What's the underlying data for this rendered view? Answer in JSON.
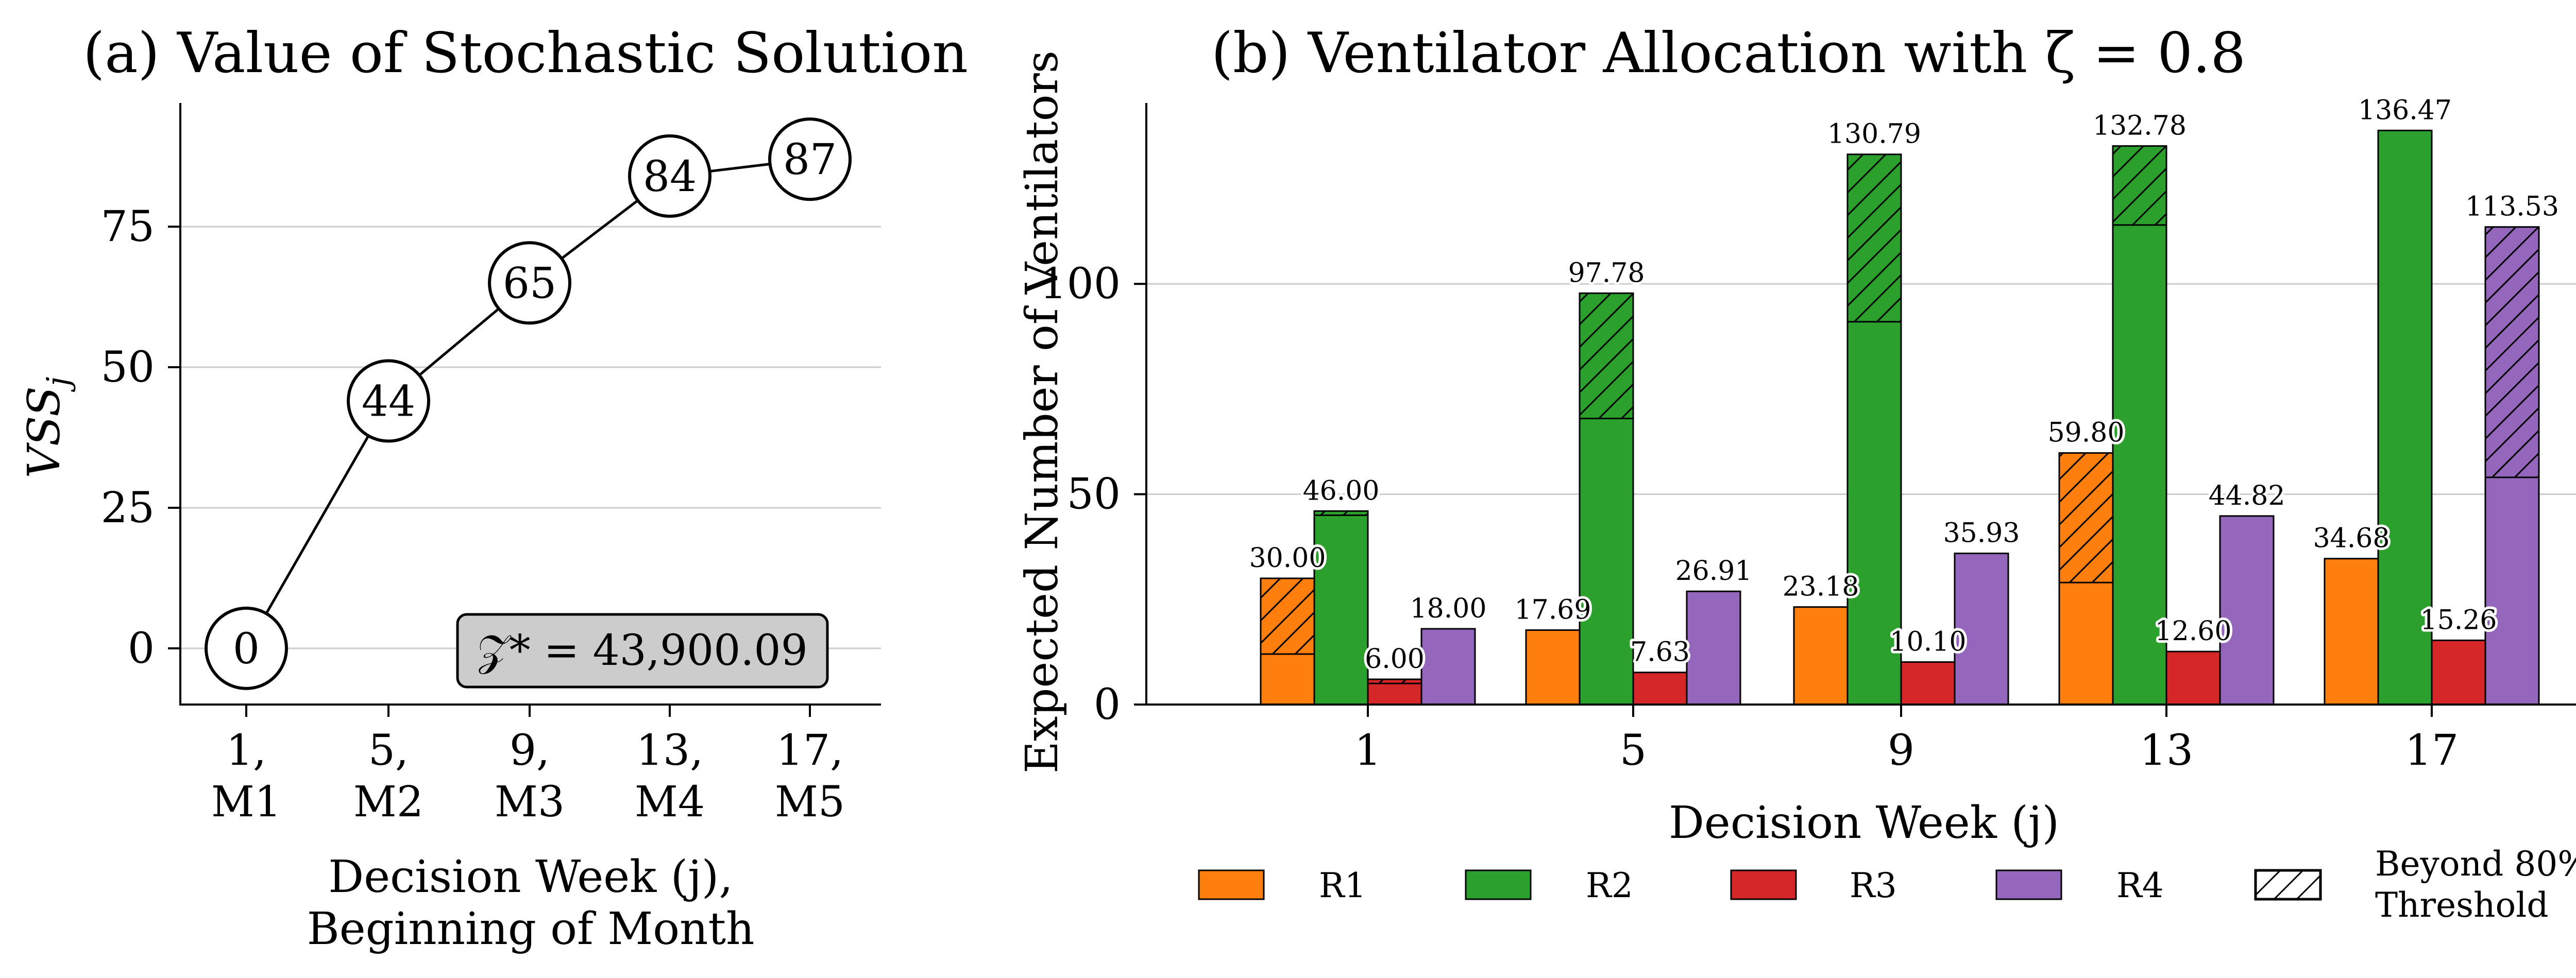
{
  "chart_data": [
    {
      "type": "line",
      "title": "(a) Value of Stochastic Solution",
      "xlabel_lines": [
        "Decision Week (j),",
        "Beginning of Month"
      ],
      "ylabel": "VSS_j",
      "ylabel_main": "VSS",
      "ylabel_sub": "j",
      "x_ticks": [
        {
          "line1": "1,",
          "line2": "M1"
        },
        {
          "line1": "5,",
          "line2": "M2"
        },
        {
          "line1": "9,",
          "line2": "M3"
        },
        {
          "line1": "13,",
          "line2": "M4"
        },
        {
          "line1": "17,",
          "line2": "M5"
        }
      ],
      "x": [
        1,
        5,
        9,
        13,
        17
      ],
      "values": [
        0,
        44,
        65,
        84,
        87
      ],
      "point_labels": [
        "0",
        "44",
        "65",
        "84",
        "87"
      ],
      "ylim": [
        -10,
        97
      ],
      "y_ticks": [
        0,
        25,
        50,
        75
      ],
      "y_tick_labels": [
        "0",
        "25",
        "50",
        "75"
      ],
      "annotation": "𝒵* = 43,900.09",
      "grid": "horizontal"
    },
    {
      "type": "bar",
      "title": "(b) Ventilator Allocation with ζ = 0.8",
      "xlabel": "Decision Week (j)",
      "ylabel": "Expected Number of Ventilators",
      "categories": [
        "1",
        "5",
        "9",
        "13",
        "17"
      ],
      "ylim": [
        0,
        143
      ],
      "y_ticks": [
        0,
        50,
        100
      ],
      "y_tick_labels": [
        "0",
        "50",
        "100"
      ],
      "grid": "horizontal",
      "series": [
        {
          "name": "R1",
          "color": "#ff7f0e",
          "values": [
            30.0,
            17.69,
            23.18,
            59.8,
            34.68
          ],
          "threshold_values": [
            12.0,
            17.69,
            23.18,
            29.0,
            34.68
          ],
          "labels": [
            "30.00",
            "17.69",
            "23.18",
            "59.80",
            "34.68"
          ]
        },
        {
          "name": "R2",
          "color": "#2ca02c",
          "values": [
            46.0,
            97.78,
            130.79,
            132.78,
            136.47
          ],
          "threshold_values": [
            45.0,
            68.0,
            91.0,
            114.0,
            136.47
          ],
          "labels": [
            "46.00",
            "97.78",
            "130.79",
            "132.78",
            "136.47"
          ]
        },
        {
          "name": "R3",
          "color": "#d62728",
          "values": [
            6.0,
            7.63,
            10.1,
            12.6,
            15.26
          ],
          "threshold_values": [
            5.0,
            7.63,
            10.1,
            12.6,
            15.26
          ],
          "labels": [
            "6.00",
            "7.63",
            "10.10",
            "12.60",
            "15.26"
          ]
        },
        {
          "name": "R4",
          "color": "#9467bd",
          "values": [
            18.0,
            26.91,
            35.93,
            44.82,
            113.53
          ],
          "threshold_values": [
            18.0,
            26.91,
            35.93,
            44.82,
            54.0
          ],
          "labels": [
            "18.00",
            "26.91",
            "35.93",
            "44.82",
            "113.53"
          ]
        }
      ],
      "legend": {
        "placement": "bottom",
        "items": [
          "R1",
          "R2",
          "R3",
          "R4"
        ],
        "hatch_line1": "Beyond 80%",
        "hatch_line2": "Threshold"
      }
    }
  ]
}
